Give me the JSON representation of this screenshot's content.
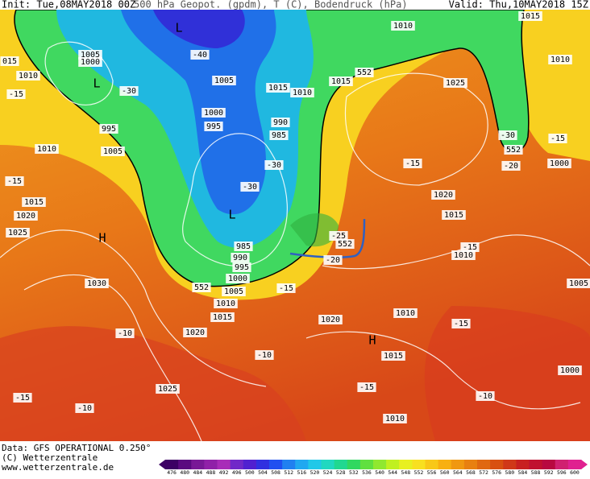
{
  "header": {
    "init": "Init: Tue,08MAY2018 00Z",
    "title": "500 hPa Geopot. (gpdm), T (C), Bodendruck (hPa)",
    "valid": "Valid: Thu,10MAY2018 15Z"
  },
  "footer": {
    "data": "Data: GFS OPERATIONAL 0.250°",
    "copyright": "(C) Wetterzentrale",
    "url": "www.wetterzentrale.de"
  },
  "colorbar": {
    "ticks": [
      476,
      480,
      484,
      488,
      492,
      496,
      500,
      504,
      508,
      512,
      516,
      520,
      524,
      528,
      532,
      536,
      540,
      544,
      548,
      552,
      556,
      560,
      564,
      568,
      572,
      576,
      580,
      584,
      588,
      592,
      596,
      600
    ],
    "colors": [
      "#3c0064",
      "#5a0a80",
      "#781896",
      "#9020a8",
      "#a82cb8",
      "#7028c8",
      "#5020d0",
      "#3030e0",
      "#2050f0",
      "#2080f0",
      "#20a8f0",
      "#20c8e8",
      "#20d8c0",
      "#20d890",
      "#30d860",
      "#60e040",
      "#90e830",
      "#c0f020",
      "#e8f020",
      "#f8e020",
      "#f8c818",
      "#f8b010",
      "#f09810",
      "#e88010",
      "#e06810",
      "#d85010",
      "#d03818",
      "#c82020",
      "#c01030",
      "#b80840",
      "#d02070",
      "#e02090"
    ]
  },
  "map": {
    "labels": [
      "1005",
      "1000",
      "1010",
      "L",
      "-15",
      "-30",
      "995",
      "1010",
      "1005",
      "-15",
      "1015",
      "1020",
      "1025",
      "H",
      "1030",
      "-10",
      "-15",
      "-10",
      "1025",
      "1020",
      "1015",
      "1010",
      "1005",
      "1000",
      "995",
      "990",
      "985",
      "L",
      "-30",
      "1000",
      "995",
      "1005",
      "-40",
      "L",
      "1010",
      "1015",
      "990",
      "985",
      "-30",
      "552",
      "552",
      "-25",
      "552",
      "1015",
      "1010",
      "1015",
      "1010",
      "1025",
      "-30",
      "552",
      "-15",
      "1000",
      "-20",
      "-15",
      "1020",
      "1015",
      "-15",
      "1010",
      "1005",
      "1010",
      "-15",
      "1020",
      "-15",
      "H",
      "1015",
      "-10",
      "-15",
      "-10",
      "1010",
      "1000",
      "-20",
      "015"
    ]
  }
}
